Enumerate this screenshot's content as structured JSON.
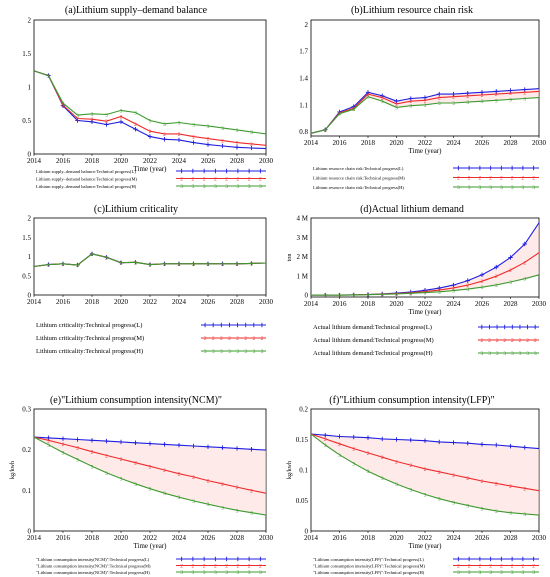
{
  "colors": {
    "L": "#1f1fe0",
    "M": "#ee2a2a",
    "H": "#3c9a2e",
    "band": "#ffd9d9"
  },
  "chart_data": [
    {
      "type": "line",
      "title": "(a)Lithium supply–demand balance",
      "xlabel": "Time (year)",
      "ylabel": "",
      "x": [
        2014,
        2015,
        2016,
        2017,
        2018,
        2019,
        2020,
        2021,
        2022,
        2023,
        2024,
        2025,
        2026,
        2027,
        2028,
        2029,
        2030
      ],
      "xlim": [
        2014,
        2030
      ],
      "ylim": [
        0,
        2
      ],
      "xticks": [
        "2014",
        "2016",
        "2018",
        "2020",
        "2022",
        "2024",
        "2026",
        "2028",
        "2030"
      ],
      "yticks": [
        "0",
        "0.5",
        "1",
        "1.5",
        "2"
      ],
      "series": [
        {
          "name": "Lithium supply–demand balance:Technical progress(L)",
          "values": [
            1.24,
            1.17,
            0.72,
            0.5,
            0.48,
            0.44,
            0.48,
            0.37,
            0.26,
            0.22,
            0.21,
            0.17,
            0.14,
            0.12,
            0.1,
            0.09,
            0.08
          ]
        },
        {
          "name": "Lithium supply–demand balance:Technical progress(M)",
          "values": [
            1.24,
            1.17,
            0.73,
            0.53,
            0.52,
            0.49,
            0.56,
            0.45,
            0.34,
            0.3,
            0.3,
            0.26,
            0.23,
            0.2,
            0.17,
            0.15,
            0.13
          ]
        },
        {
          "name": "Lithium supply–demand balance:Technical progress(H)",
          "values": [
            1.24,
            1.17,
            0.76,
            0.58,
            0.6,
            0.59,
            0.65,
            0.62,
            0.5,
            0.45,
            0.47,
            0.44,
            0.42,
            0.39,
            0.36,
            0.33,
            0.3
          ]
        }
      ]
    },
    {
      "type": "line",
      "title": "(b)Lithium resource chain risk",
      "xlabel": "Time (year)",
      "ylabel": "",
      "x": [
        2014,
        2015,
        2016,
        2017,
        2018,
        2019,
        2020,
        2021,
        2022,
        2023,
        2024,
        2025,
        2026,
        2027,
        2028,
        2029,
        2030
      ],
      "xlim": [
        2014,
        2030
      ],
      "ylim": [
        0.75,
        2.05
      ],
      "xticks": [
        "2014",
        "2016",
        "2018",
        "2020",
        "2022",
        "2024",
        "2026",
        "2028",
        "2030"
      ],
      "yticks": [
        "0.8",
        "1.1",
        "1.4",
        "1.7",
        "2"
      ],
      "series": [
        {
          "name": "Lithium resource chain risk:Technical progress(L)",
          "values": [
            0.78,
            0.82,
            1.02,
            1.08,
            1.24,
            1.2,
            1.14,
            1.17,
            1.18,
            1.22,
            1.22,
            1.23,
            1.24,
            1.25,
            1.26,
            1.27,
            1.28
          ]
        },
        {
          "name": "Lithium resource chain risk:Technical progress(M)",
          "values": [
            0.78,
            0.82,
            1.01,
            1.06,
            1.22,
            1.18,
            1.11,
            1.14,
            1.15,
            1.18,
            1.19,
            1.2,
            1.21,
            1.22,
            1.23,
            1.24,
            1.25
          ]
        },
        {
          "name": "Lithium resource chain risk:Technical progress(H)",
          "values": [
            0.78,
            0.82,
            1.0,
            1.05,
            1.19,
            1.14,
            1.07,
            1.09,
            1.1,
            1.12,
            1.12,
            1.13,
            1.14,
            1.15,
            1.16,
            1.17,
            1.18
          ]
        }
      ]
    },
    {
      "type": "line",
      "title": "(c)Lithium criticality",
      "xlabel": "",
      "ylabel": "",
      "x": [
        2014,
        2015,
        2016,
        2017,
        2018,
        2019,
        2020,
        2021,
        2022,
        2023,
        2024,
        2025,
        2026,
        2027,
        2028,
        2029,
        2030
      ],
      "xlim": [
        2014,
        2030
      ],
      "ylim": [
        0,
        2
      ],
      "xticks": [
        "2014",
        "2016",
        "2018",
        "2020",
        "2022",
        "2024",
        "2026",
        "2028",
        "2030"
      ],
      "yticks": [
        "0",
        "0.5",
        "1",
        "1.5",
        "2"
      ],
      "series": [
        {
          "name": "Lithium criticality:Technical progress(L)",
          "values": [
            0.74,
            0.79,
            0.81,
            0.78,
            1.07,
            0.98,
            0.84,
            0.85,
            0.79,
            0.81,
            0.81,
            0.81,
            0.81,
            0.81,
            0.81,
            0.82,
            0.83
          ]
        },
        {
          "name": "Lithium criticality:Technical progress(M)",
          "values": [
            0.74,
            0.79,
            0.81,
            0.78,
            1.07,
            0.98,
            0.84,
            0.85,
            0.79,
            0.81,
            0.81,
            0.81,
            0.81,
            0.81,
            0.81,
            0.82,
            0.83
          ]
        },
        {
          "name": "Lithium criticality:Technical progress(H)",
          "values": [
            0.74,
            0.79,
            0.81,
            0.78,
            1.07,
            0.98,
            0.84,
            0.85,
            0.79,
            0.81,
            0.81,
            0.81,
            0.81,
            0.81,
            0.81,
            0.82,
            0.83
          ]
        }
      ]
    },
    {
      "type": "line",
      "title": "(d)Actual lithium demand",
      "xlabel": "Time (year)",
      "ylabel": "ton",
      "x": [
        2014,
        2015,
        2016,
        2017,
        2018,
        2019,
        2020,
        2021,
        2022,
        2023,
        2024,
        2025,
        2026,
        2027,
        2028,
        2029,
        2030
      ],
      "xlim": [
        2014,
        2030
      ],
      "ylim": [
        -0.1,
        4.0
      ],
      "xticks": [
        "2014",
        "2016",
        "2018",
        "2020",
        "2022",
        "2024",
        "2026",
        "2028",
        "2030"
      ],
      "yticks": [
        "0",
        "1 M",
        "2 M",
        "3 M",
        "4 M"
      ],
      "series": [
        {
          "name": "Actual lithium demand:Technical progress(L)",
          "values": [
            0,
            0,
            0,
            0.01,
            0.03,
            0.06,
            0.1,
            0.16,
            0.25,
            0.36,
            0.52,
            0.75,
            1.05,
            1.45,
            1.95,
            2.65,
            3.75
          ]
        },
        {
          "name": "Actual lithium demand:Technical progress(M)",
          "values": [
            0,
            0,
            0,
            0.01,
            0.03,
            0.05,
            0.08,
            0.12,
            0.18,
            0.26,
            0.37,
            0.52,
            0.72,
            0.98,
            1.3,
            1.7,
            2.2
          ]
        },
        {
          "name": "Actual lithium demand:Technical progress(H)",
          "values": [
            0,
            0,
            0,
            0.01,
            0.02,
            0.04,
            0.06,
            0.09,
            0.13,
            0.17,
            0.23,
            0.31,
            0.41,
            0.53,
            0.68,
            0.85,
            1.05
          ]
        }
      ]
    },
    {
      "type": "line",
      "title": "(e)\"Lithium consumption intensity(NCM)\"",
      "xlabel": "Time (year)",
      "ylabel": "kg/kwh",
      "x": [
        2014,
        2015,
        2016,
        2017,
        2018,
        2019,
        2020,
        2021,
        2022,
        2023,
        2024,
        2025,
        2026,
        2027,
        2028,
        2029,
        2030
      ],
      "xlim": [
        2014,
        2030
      ],
      "ylim": [
        0,
        0.3
      ],
      "xticks": [
        "2014",
        "2016",
        "2018",
        "2020",
        "2022",
        "2024",
        "2026",
        "2028",
        "2030"
      ],
      "yticks": [
        "0",
        "0.1",
        "0.2",
        "0.3"
      ],
      "series": [
        {
          "name": "\"Lithium consumption intensity(NCM)\":Technical progress(L)",
          "values": [
            0.231,
            0.229,
            0.227,
            0.225,
            0.223,
            0.221,
            0.219,
            0.217,
            0.215,
            0.213,
            0.211,
            0.209,
            0.207,
            0.205,
            0.203,
            0.201,
            0.199
          ]
        },
        {
          "name": "\"Lithium consumption intensity(NCM)\":Technical progress(M)",
          "values": [
            0.231,
            0.223,
            0.214,
            0.205,
            0.195,
            0.186,
            0.177,
            0.168,
            0.159,
            0.15,
            0.141,
            0.133,
            0.124,
            0.116,
            0.108,
            0.1,
            0.093
          ]
        },
        {
          "name": "\"Lithium consumption intensity(NCM)\":Technical progress(H)",
          "values": [
            0.231,
            0.212,
            0.193,
            0.176,
            0.159,
            0.143,
            0.129,
            0.116,
            0.104,
            0.093,
            0.083,
            0.074,
            0.066,
            0.058,
            0.051,
            0.045,
            0.039
          ]
        }
      ]
    },
    {
      "type": "line",
      "title": "(f)\"Lithium consumption intensity(LFP)\"",
      "xlabel": "Time (year)",
      "ylabel": "kg/kwh",
      "x": [
        2014,
        2015,
        2016,
        2017,
        2018,
        2019,
        2020,
        2021,
        2022,
        2023,
        2024,
        2025,
        2026,
        2027,
        2028,
        2029,
        2030
      ],
      "xlim": [
        2014,
        2030
      ],
      "ylim": [
        0,
        0.2
      ],
      "xticks": [
        "2014",
        "2016",
        "2018",
        "2020",
        "2022",
        "2024",
        "2026",
        "2028",
        "2030"
      ],
      "yticks": [
        "0",
        "0.05",
        "0.1",
        "0.15",
        "0.2"
      ],
      "series": [
        {
          "name": "\"Lithium consumption intensity(LFP)\":Technical progress(L)",
          "values": [
            0.159,
            0.157,
            0.155,
            0.154,
            0.153,
            0.151,
            0.15,
            0.149,
            0.148,
            0.146,
            0.145,
            0.144,
            0.142,
            0.141,
            0.139,
            0.137,
            0.135
          ]
        },
        {
          "name": "\"Lithium consumption intensity(LFP)\":Technical progress(M)",
          "values": [
            0.159,
            0.151,
            0.143,
            0.135,
            0.128,
            0.121,
            0.114,
            0.108,
            0.102,
            0.097,
            0.092,
            0.087,
            0.082,
            0.078,
            0.074,
            0.07,
            0.066
          ]
        },
        {
          "name": "\"Lithium consumption intensity(LFP)\":Technical progress(H)",
          "values": [
            0.159,
            0.141,
            0.125,
            0.111,
            0.098,
            0.087,
            0.077,
            0.068,
            0.06,
            0.053,
            0.047,
            0.042,
            0.037,
            0.033,
            0.03,
            0.028,
            0.026
          ]
        }
      ]
    }
  ]
}
